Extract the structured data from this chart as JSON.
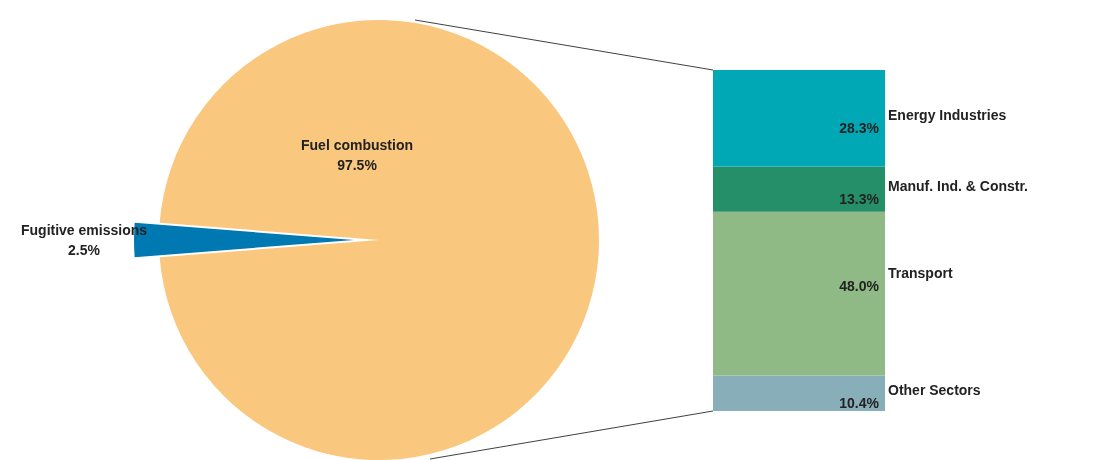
{
  "chart_data": [
    {
      "type": "pie",
      "categories": [
        "Fuel combustion",
        "Fugitive emissions"
      ],
      "values": [
        97.5,
        2.5
      ],
      "colors": [
        "#f9c77e",
        "#0079b3"
      ],
      "value_labels": [
        "97.5%",
        "2.5%"
      ],
      "legend": false
    },
    {
      "type": "bar",
      "stacked": true,
      "categories": [
        null
      ],
      "tick_labels": false,
      "legend": false,
      "series": [
        {
          "name": "Other Sectors",
          "color": "#88aeb9",
          "values": [
            10.4
          ],
          "value_labels": [
            "10.4%"
          ]
        },
        {
          "name": "Transport",
          "color": "#8fba85",
          "values": [
            48.0
          ],
          "value_labels": [
            "48.0%"
          ]
        },
        {
          "name": "Manuf. Ind. & Constr.",
          "color": "#248f68",
          "values": [
            13.3
          ],
          "value_labels": [
            "13.3%"
          ]
        },
        {
          "name": "Energy Industries",
          "color": "#00a8b5",
          "values": [
            28.3
          ],
          "value_labels": [
            "28.3%"
          ]
        }
      ]
    }
  ]
}
